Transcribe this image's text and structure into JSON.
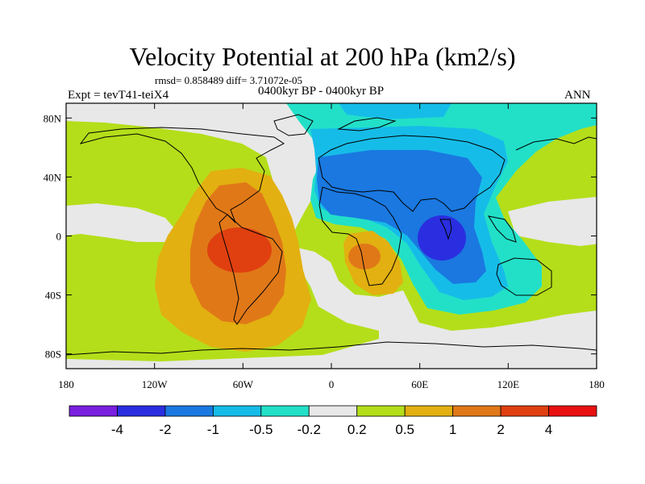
{
  "header": {
    "title": "Velocity Potential at 200 hPa (km2/s)",
    "stats": "rmsd= 0.858489 diff= 3.71072e-05",
    "experiment": "Expt = tevT41-teiX4",
    "period": "0400kyr BP - 0400kyr BP",
    "season": "ANN"
  },
  "chart_data": {
    "type": "contour-map",
    "title": "Velocity Potential at 200 hPa (km2/s)",
    "units": "km2/s",
    "xlim": [
      -180,
      180
    ],
    "ylim": [
      -90,
      90
    ],
    "x_ticks": [
      {
        "lon": -180,
        "label": "180"
      },
      {
        "lon": -120,
        "label": "120W"
      },
      {
        "lon": -60,
        "label": "60W"
      },
      {
        "lon": 0,
        "label": "0"
      },
      {
        "lon": 60,
        "label": "60E"
      },
      {
        "lon": 120,
        "label": "120E"
      },
      {
        "lon": 180,
        "label": "180"
      }
    ],
    "y_ticks": [
      {
        "lat": 80,
        "label": "80N"
      },
      {
        "lat": 40,
        "label": "40N"
      },
      {
        "lat": 0,
        "label": "0"
      },
      {
        "lat": -40,
        "label": "40S"
      },
      {
        "lat": -80,
        "label": "80S"
      }
    ],
    "levels": [
      "-4",
      "-2",
      "-1",
      "-0.5",
      "-0.2",
      "0.2",
      "0.5",
      "1",
      "2",
      "4"
    ],
    "colors": [
      "#7a1fe0",
      "#2a2ee0",
      "#1a78e0",
      "#16bce8",
      "#22e0c8",
      "#e8e8e8",
      "#b4de1a",
      "#e2b010",
      "#e07818",
      "#e04010",
      "#e81010"
    ],
    "features": [
      {
        "name": "positive center over South America",
        "lon": -60,
        "lat": -10,
        "value_range": "2 to 4"
      },
      {
        "name": "positive center over southern Africa",
        "lon": 25,
        "lat": -15,
        "value_range": "1 to 2"
      },
      {
        "name": "negative center over Indian Ocean",
        "lon": 75,
        "lat": -5,
        "value_range": "-4 to -2"
      },
      {
        "name": "negative region over Eurasia / North Africa",
        "lon": 60,
        "lat": 30,
        "value_range": "-2 to -1"
      }
    ]
  }
}
